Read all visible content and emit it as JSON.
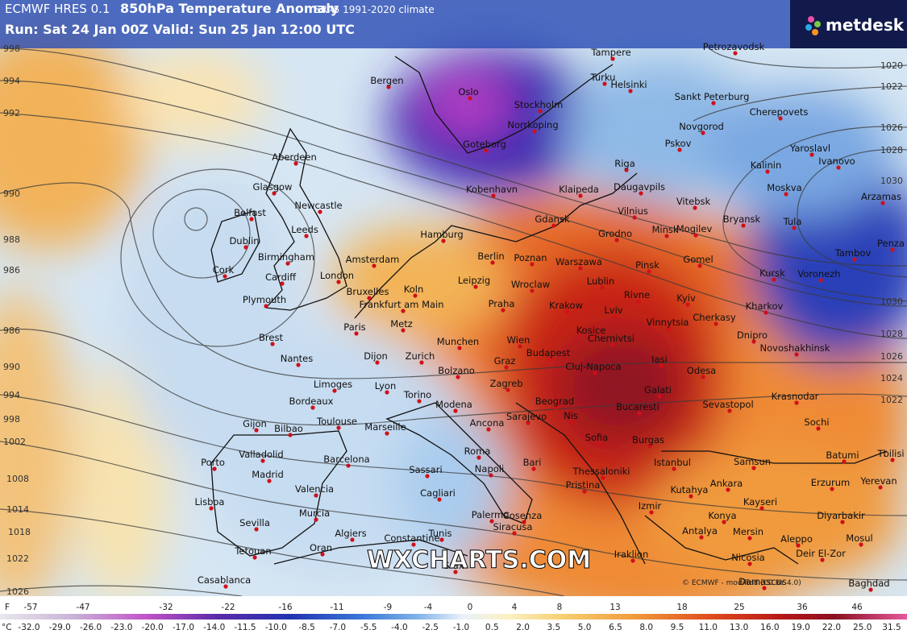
{
  "header": {
    "model": "ECMWF HRES 0.1",
    "product": "850hPa Temperature Anomaly",
    "climate": "ERA5 1991-2020 climate",
    "run": "Run: Sat 24 Jan 00Z Valid: Sun 25 Jan 12:00 UTC"
  },
  "logo": "metdesk",
  "watermark": "WXCHARTS.COM",
  "credit": "© ECMWF - modified (CC BY 4.0)",
  "cities": [
    "Petrozavodsk",
    "Tampere",
    "Bergen",
    "Oslo",
    "Stockholm",
    "Turku",
    "Helsinki",
    "Sankt Peterburg",
    "Cherepovets",
    "Norrkoping",
    "Goteborg",
    "Novgorod",
    "Pskov",
    "Yaroslavl",
    "Ivanovo",
    "Aberdeen",
    "Riga",
    "Kalinin",
    "Glasgow",
    "Kobenhavn",
    "Klaipeda",
    "Daugavpils",
    "Moskva",
    "Arzamas",
    "Vilnius",
    "Vitebsk",
    "Belfast",
    "Newcastle",
    "Gdansk",
    "Tula",
    "Hamburg",
    "Grodno",
    "Minsk",
    "Mogilev",
    "Dublin",
    "Leeds",
    "Bryansk",
    "Penza",
    "Berlin",
    "Poznan",
    "Warszawa",
    "Amsterdam",
    "Pinsk",
    "Gomel",
    "Tambov",
    "Cork",
    "Birmingham",
    "Cardiff",
    "London",
    "Koln",
    "Leipzig",
    "Wroclaw",
    "Lublin",
    "Kursk",
    "Voronezh",
    "Bruxelles",
    "Plymouth",
    "Frankfurt am Main",
    "Praha",
    "Krakow",
    "Rivne",
    "Kyiv",
    "Lviv",
    "Kharkov",
    "Paris",
    "Metz",
    "Kosice",
    "Vinnytsia",
    "Cherkasy",
    "Brest",
    "Munchen",
    "Wien",
    "Chernivtsi",
    "Dnipro",
    "Novoshakhinsk",
    "Nantes",
    "Dijon",
    "Zurich",
    "Budapest",
    "Iasi",
    "Odesa",
    "Graz",
    "Bolzano",
    "Cluj-Napoca",
    "Limoges",
    "Lyon",
    "Zagreb",
    "Galati",
    "Krasnodar",
    "Bordeaux",
    "Torino",
    "Modena",
    "Beograd",
    "Bucaresti",
    "Sevastopol",
    "Gijon",
    "Bilbao",
    "Toulouse",
    "Marseille",
    "Ancona",
    "Sarajevo",
    "Nis",
    "Sochi",
    "Sofia",
    "Burgas",
    "Valladolid",
    "Barcelona",
    "Roma",
    "Istanbul",
    "Samsun",
    "Batumi",
    "Tbilisi",
    "Porto",
    "Madrid",
    "Bari",
    "Napoli",
    "Sassari",
    "Thessaloniki",
    "Erzurum",
    "Yerevan",
    "Valencia",
    "Cagliari",
    "Pristina",
    "Kutahya",
    "Ankara",
    "Kayseri",
    "Lisboa",
    "Murcia",
    "Cosenza",
    "Izmir",
    "Palermo",
    "Diyarbakir",
    "Sevilla",
    "Konya",
    "Mersin",
    "Siracusa",
    "Antalya",
    "Algiers",
    "Constantine",
    "Tunis",
    "Aleppo",
    "Mosul",
    "Tetouan",
    "Oran",
    "Iraklion",
    "Nicosia",
    "Deir El-Zor",
    "Sfax",
    "Casablanca",
    "Damascus",
    "Baghdad"
  ],
  "isobars": [
    "998",
    "994",
    "992",
    "990",
    "988",
    "986",
    "986",
    "990",
    "994",
    "998",
    "1002",
    "1008",
    "1014",
    "1018",
    "1022",
    "1026",
    "1020",
    "1022",
    "1026",
    "1028",
    "1030",
    "1030",
    "1028",
    "1026",
    "1024",
    "1022"
  ],
  "legend": {
    "f_unit": "F",
    "fahrenheit": [
      "-57",
      "-47",
      "-32",
      "-22",
      "-16",
      "-11",
      "-9",
      "-4",
      "0",
      "4",
      "8",
      "13",
      "18",
      "25",
      "36",
      "46"
    ],
    "c_unit": "°C",
    "celsius": [
      "-32.0",
      "-29.0",
      "-26.0",
      "-23.0",
      "-20.0",
      "-17.0",
      "-14.0",
      "-11.5",
      "-10.0",
      "-8.5",
      "-7.0",
      "-5.5",
      "-4.0",
      "-2.5",
      "-1.0",
      "0.5",
      "2.0",
      "3.5",
      "5.0",
      "6.5",
      "8.0",
      "9.5",
      "11.0",
      "13.0",
      "16.0",
      "19.0",
      "22.0",
      "25.0",
      "31.5"
    ]
  }
}
